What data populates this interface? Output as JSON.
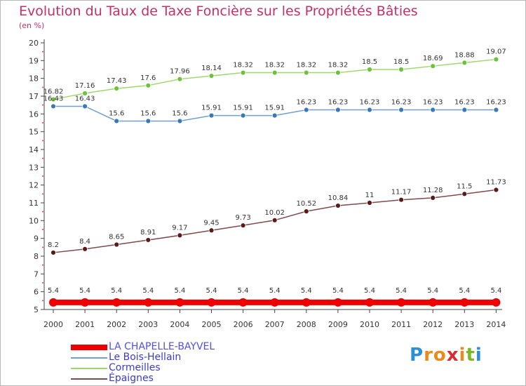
{
  "chart_data": {
    "type": "line",
    "title": "Evolution du Taux de Taxe Foncière sur les Propriétés Bâties",
    "subtitle": "(en %)",
    "x": [
      "2000",
      "2001",
      "2002",
      "2003",
      "2004",
      "2005",
      "2006",
      "2007",
      "2008",
      "2009",
      "2010",
      "2011",
      "2012",
      "2013",
      "2014"
    ],
    "ylim": [
      5,
      20
    ],
    "yticks": [
      "5",
      "6",
      "7",
      "8",
      "9",
      "10",
      "11",
      "12",
      "13",
      "14",
      "15",
      "16",
      "17",
      "18",
      "19",
      "20"
    ],
    "grid": false,
    "legend_position": "bottom-left",
    "series": [
      {
        "name": "LA CHAPELLE-BAYVEL",
        "color": "#ee0000",
        "marker_color": "#ee0000",
        "values": [
          5.4,
          5.4,
          5.4,
          5.4,
          5.4,
          5.4,
          5.4,
          5.4,
          5.4,
          5.4,
          5.4,
          5.4,
          5.4,
          5.4,
          5.4
        ],
        "labels": [
          "5.4",
          "5.4",
          "5.4",
          "5.4",
          "5.4",
          "5.4",
          "5.4",
          "5.4",
          "5.4",
          "5.4",
          "5.4",
          "5.4",
          "5.4",
          "5.4",
          "5.4"
        ]
      },
      {
        "name": "Le Bois-Hellain",
        "color": "#6fa0d0",
        "marker_color": "#3a78b8",
        "values": [
          16.43,
          16.43,
          15.6,
          15.6,
          15.6,
          15.91,
          15.91,
          15.91,
          16.23,
          16.23,
          16.23,
          16.23,
          16.23,
          16.23,
          16.23
        ],
        "labels": [
          "16.43",
          "16.43",
          "15.6",
          "15.6",
          "15.6",
          "15.91",
          "15.91",
          "15.91",
          "16.23",
          "16.23",
          "16.23",
          "16.23",
          "16.23",
          "16.23",
          "16.23"
        ]
      },
      {
        "name": "Cormeilles",
        "color": "#9ed86a",
        "marker_color": "#6cc23a",
        "values": [
          16.82,
          17.16,
          17.43,
          17.6,
          17.96,
          18.14,
          18.32,
          18.32,
          18.32,
          18.32,
          18.5,
          18.5,
          18.69,
          18.88,
          19.07
        ],
        "labels": [
          "16.82",
          "17.16",
          "17.43",
          "17.6",
          "17.96",
          "18.14",
          "18.32",
          "18.32",
          "18.32",
          "18.32",
          "18.5",
          "18.5",
          "18.69",
          "18.88",
          "19.07"
        ]
      },
      {
        "name": "Épaignes",
        "color": "#804a4a",
        "marker_color": "#5a1a1a",
        "values": [
          8.2,
          8.4,
          8.65,
          8.91,
          9.17,
          9.45,
          9.73,
          10.02,
          10.52,
          10.84,
          11,
          11.17,
          11.28,
          11.5,
          11.73
        ],
        "labels": [
          "8.2",
          "8.4",
          "8.65",
          "8.91",
          "9.17",
          "9.45",
          "9.73",
          "10.02",
          "10.52",
          "10.84",
          "11",
          "11.17",
          "11.28",
          "11.5",
          "11.73"
        ]
      }
    ]
  },
  "logo": {
    "letters": [
      "P",
      "r",
      "o",
      "x",
      "i",
      "t",
      "i"
    ],
    "colors": [
      "#2e8fd6",
      "#e98a1c",
      "#e98a1c",
      "#d62e2e",
      "#e98a1c",
      "#7ab828",
      "#2e8fd6"
    ]
  }
}
